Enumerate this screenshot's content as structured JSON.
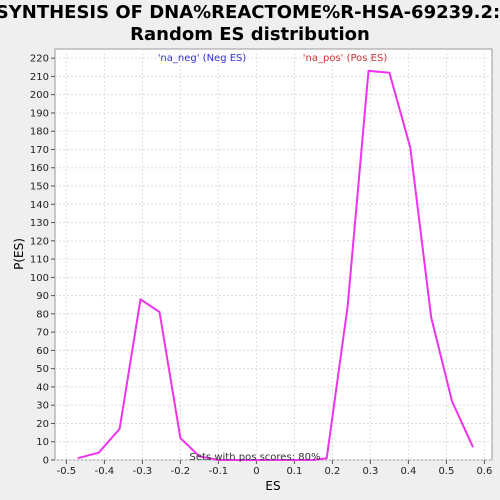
{
  "chart_data": {
    "type": "line",
    "title_lines": [
      "SYNTHESIS OF DNA%REACTOME%R-HSA-69239.2:",
      "Random ES distribution"
    ],
    "xlabel": "ES",
    "ylabel": "P(ES)",
    "xlim": [
      -0.53,
      0.62
    ],
    "ylim": [
      0,
      225
    ],
    "x_ticks": [
      -0.5,
      -0.4,
      -0.3,
      -0.2,
      -0.1,
      0,
      0.1,
      0.2,
      0.3,
      0.4,
      0.5,
      0.6
    ],
    "x_tick_labels": [
      "-0.5",
      "-0.4",
      "-0.3",
      "-0.2",
      "-0.1",
      "0",
      "0.1",
      "0.2",
      "0.3",
      "0.4",
      "0.5",
      "0.6"
    ],
    "y_ticks": [
      0,
      10,
      20,
      30,
      40,
      50,
      60,
      70,
      80,
      90,
      100,
      110,
      120,
      130,
      140,
      150,
      160,
      170,
      180,
      190,
      200,
      210,
      220
    ],
    "y_tick_labels": [
      "0",
      "10",
      "20",
      "30",
      "40",
      "50",
      "60",
      "70",
      "80",
      "90",
      "100",
      "110",
      "120",
      "130",
      "140",
      "150",
      "160",
      "170",
      "180",
      "190",
      "200",
      "210",
      "220"
    ],
    "grid": true,
    "legend": [
      {
        "label": "'na_neg' (Neg ES)",
        "color": "#3333cc"
      },
      {
        "label": "'na_pos' (Pos ES)",
        "color": "#cc3333"
      }
    ],
    "annotation": "Sets with pos scores: 80%",
    "series": [
      {
        "color": "#ee33ee",
        "x": [
          -0.47,
          -0.415,
          -0.36,
          -0.305,
          -0.255,
          -0.2,
          -0.15,
          -0.1,
          0.0,
          0.1,
          0.15,
          0.185,
          0.24,
          0.295,
          0.35,
          0.405,
          0.46,
          0.515,
          0.57
        ],
        "y": [
          1,
          4,
          17,
          88,
          81,
          12,
          2,
          0,
          0,
          0,
          0,
          1,
          84,
          213,
          212,
          171,
          78,
          32,
          7
        ]
      }
    ]
  }
}
